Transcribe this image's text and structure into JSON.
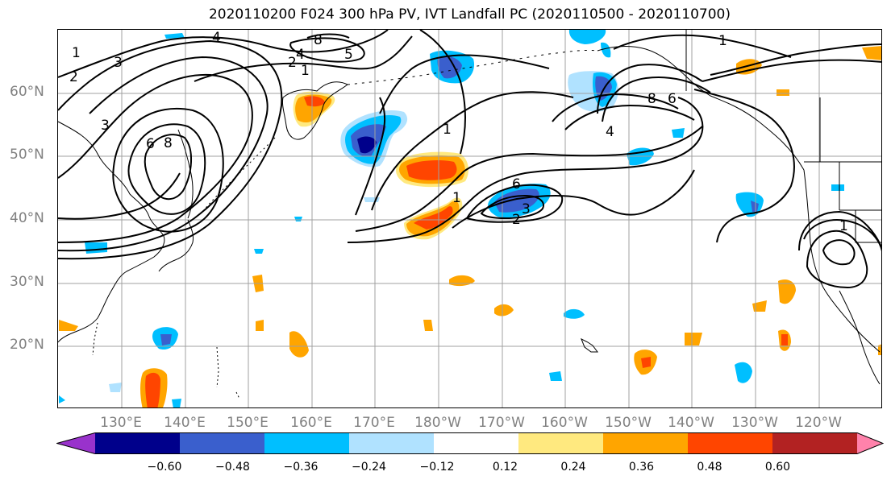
{
  "title": "2020110200 F024 300 hPa PV, IVT Landfall PC (2020110500 - 2020110700)",
  "lat_labels": [
    "60°N",
    "50°N",
    "40°N",
    "30°N",
    "20°N"
  ],
  "lon_labels": [
    "130°E",
    "140°E",
    "150°E",
    "160°E",
    "170°E",
    "180°W",
    "170°W",
    "160°W",
    "150°W",
    "140°W",
    "130°W",
    "120°W"
  ],
  "contour_labels": [
    "4",
    "1",
    "3",
    "2",
    "1",
    "2",
    "4",
    "8",
    "5",
    "6",
    "8",
    "3",
    "1",
    "6",
    "3",
    "2",
    "1",
    "4",
    "8",
    "6",
    "1",
    "1"
  ],
  "colorbar": {
    "ticks": [
      "−0.60",
      "−0.48",
      "−0.36",
      "−0.24",
      "−0.12",
      "0.12",
      "0.24",
      "0.36",
      "0.48",
      "0.60"
    ],
    "colors": [
      "#9932cc",
      "#00008b",
      "#3a5fcd",
      "#00bfff",
      "#b0e2ff",
      "#ffffff",
      "#ffe97f",
      "#ffa500",
      "#ff4500",
      "#b22222",
      "#ff82ab"
    ]
  },
  "colors": {
    "contour": "#000000",
    "grid": "#a0a0a0",
    "coast": "#000000",
    "axis_label": "#808080"
  }
}
